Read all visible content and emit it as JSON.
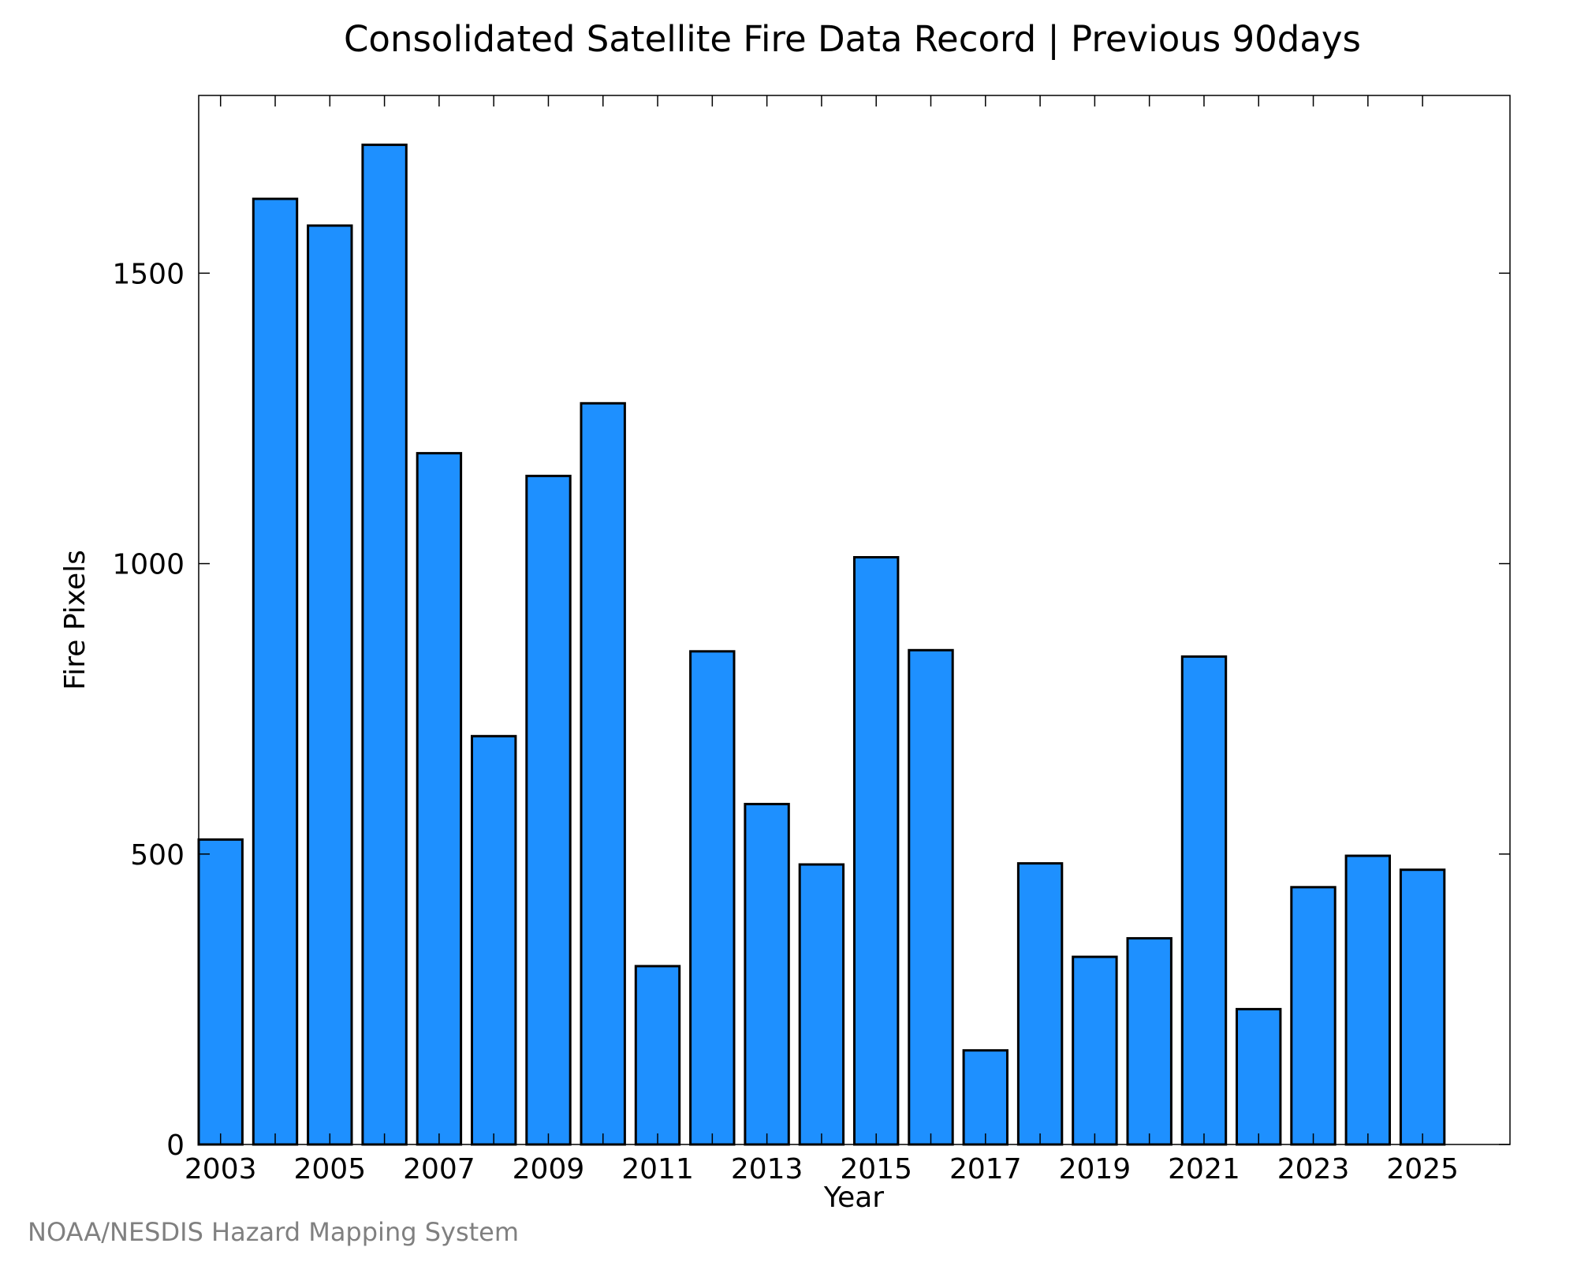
{
  "chart_data": {
    "type": "bar",
    "title": "Consolidated Satellite Fire Data Record | Previous 90days",
    "xlabel": "Year",
    "ylabel": "Fire Pixels",
    "credit": "NOAA/NESDIS Hazard Mapping System",
    "categories": [
      2003,
      2004,
      2005,
      2006,
      2007,
      2008,
      2009,
      2010,
      2011,
      2012,
      2013,
      2014,
      2015,
      2016,
      2017,
      2018,
      2019,
      2020,
      2021,
      2022,
      2023,
      2024,
      2025
    ],
    "values": [
      525,
      1628,
      1582,
      1721,
      1190,
      703,
      1151,
      1276,
      307,
      849,
      586,
      482,
      1011,
      851,
      162,
      484,
      323,
      355,
      840,
      233,
      443,
      497,
      473
    ],
    "x_tick_labels": [
      "2003",
      "2005",
      "2007",
      "2009",
      "2011",
      "2013",
      "2015",
      "2017",
      "2019",
      "2021",
      "2023",
      "2025"
    ],
    "y_tick_labels": [
      "0",
      "500",
      "1000",
      "1500"
    ],
    "y_ticks": [
      0,
      500,
      1000,
      1500
    ],
    "ylim": [
      0,
      1806
    ],
    "xlim": [
      2002.6,
      2026.6
    ],
    "bar_color": "#1E90FF",
    "bar_edge_color": "#000000",
    "grid": false
  }
}
